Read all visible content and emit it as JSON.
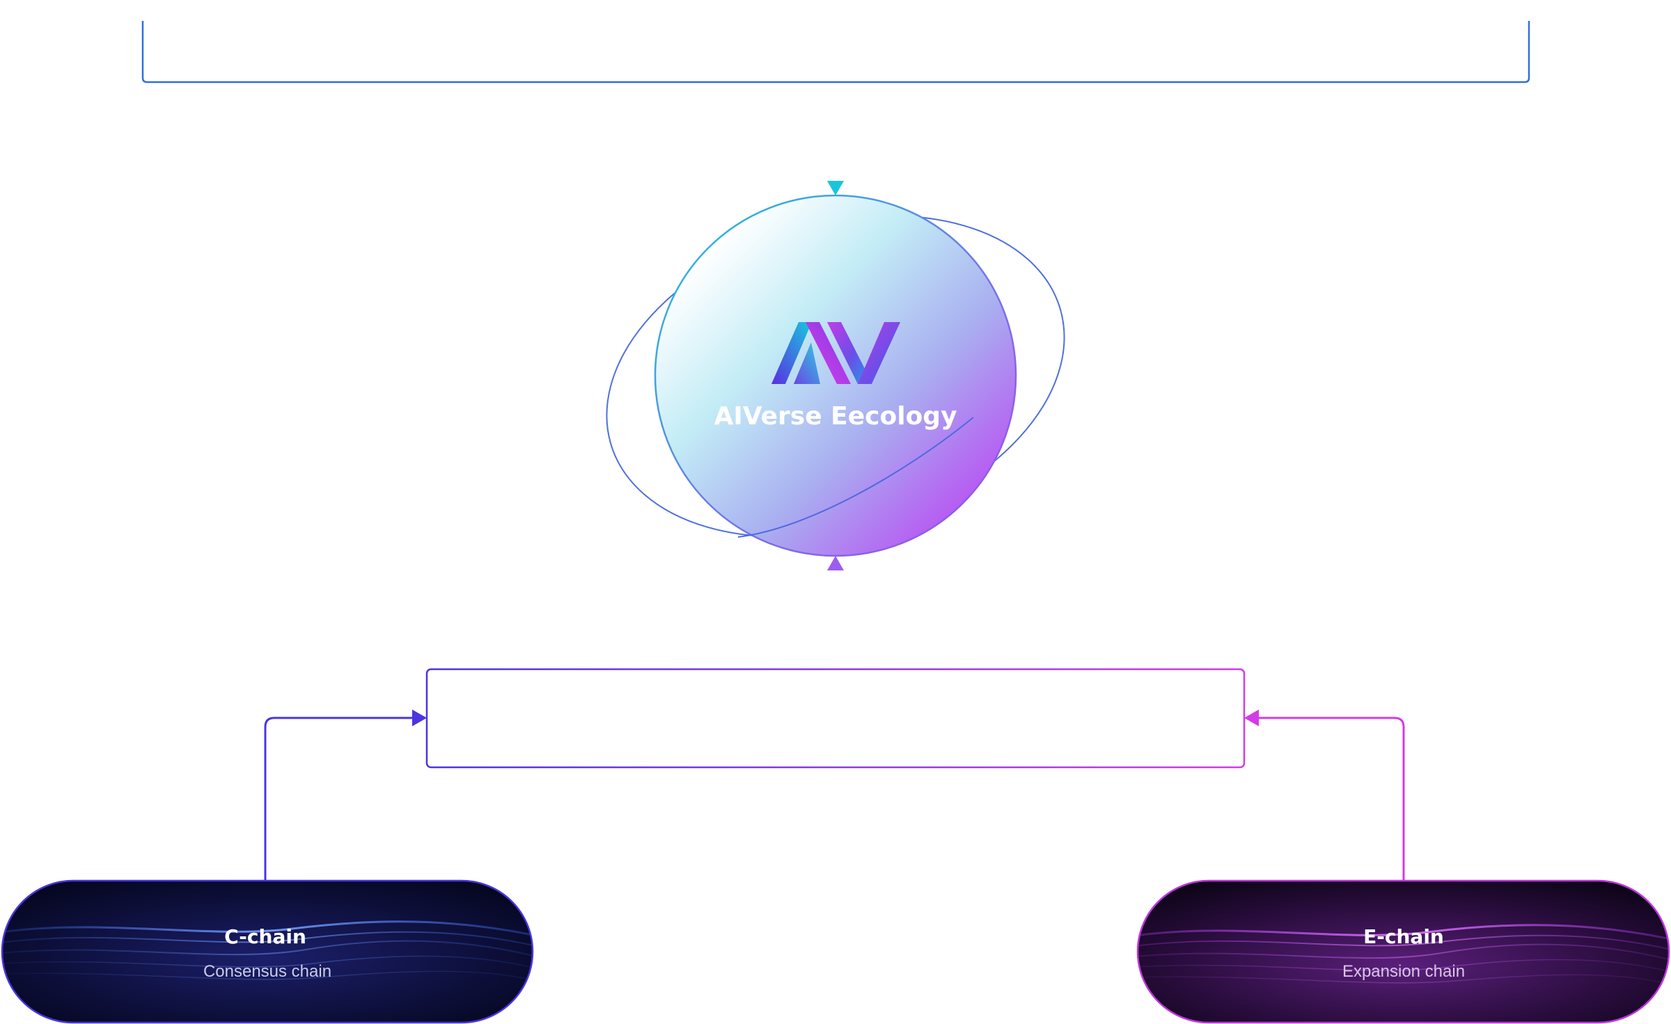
{
  "center": {
    "logo_text": "AIV",
    "title": "AIVerse Eecology"
  },
  "nodes": {
    "c_chain": {
      "title": "C-chain",
      "subtitle": "Consensus chain"
    },
    "e_chain": {
      "title": "E-chain",
      "subtitle": "Expansion chain"
    }
  },
  "colors": {
    "top_connector": "#2f6fe0",
    "top_arrow": "#18c6dc",
    "planet_gradient_start": "#e9fbff",
    "planet_gradient_mid": "#aab6f2",
    "planet_gradient_end": "#b24cf2",
    "orbit": "#4e6fe0",
    "hub_left": "#4a35e0",
    "hub_right": "#d43ae6",
    "c_chain_border": "#4a35e0",
    "e_chain_border": "#c035e0"
  }
}
